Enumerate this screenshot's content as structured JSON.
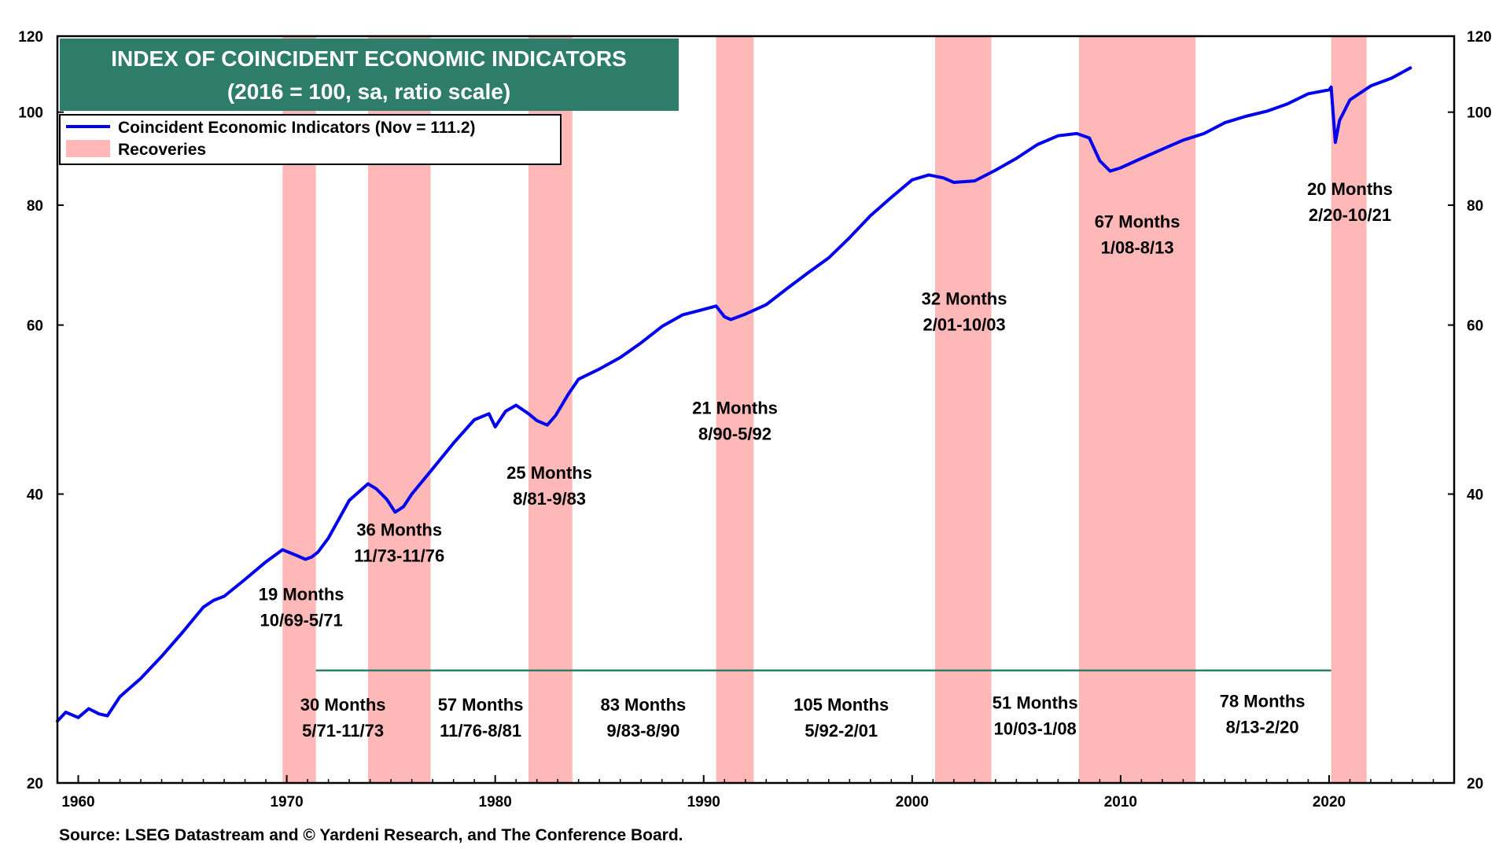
{
  "chart_data": {
    "type": "line",
    "title": "INDEX OF COINCIDENT ECONOMIC INDICATORS",
    "subtitle": "(2016 = 100, sa, ratio scale)",
    "xlabel": "",
    "ylabel": "",
    "y_scale": "log",
    "xlim": [
      1959.0,
      2026.0
    ],
    "ylim": [
      20,
      120
    ],
    "y_ticks": [
      20,
      40,
      60,
      80,
      100,
      120
    ],
    "x_ticks": [
      1960,
      1970,
      1980,
      1990,
      2000,
      2010,
      2020
    ],
    "grid": false,
    "legend_position": "top-left",
    "legend": [
      {
        "label": "Coincident Economic Indicators (Nov = 111.2)",
        "color": "#0000ee",
        "kind": "line"
      },
      {
        "label": "Recoveries",
        "color": "#ffb8b8",
        "kind": "band"
      }
    ],
    "series": [
      {
        "name": "Coincident Economic Indicators",
        "color": "#0000ee",
        "x": [
          1959.0,
          1959.4,
          1960.0,
          1960.5,
          1961.0,
          1961.4,
          1962.0,
          1963.0,
          1964.0,
          1965.0,
          1966.0,
          1966.5,
          1967.0,
          1968.0,
          1969.0,
          1969.8,
          1970.5,
          1970.9,
          1971.2,
          1971.5,
          1972.0,
          1973.0,
          1973.9,
          1974.3,
          1974.8,
          1975.2,
          1975.6,
          1976.0,
          1977.0,
          1978.0,
          1979.0,
          1979.7,
          1980.0,
          1980.5,
          1981.0,
          1981.6,
          1982.0,
          1982.5,
          1982.9,
          1983.5,
          1984.0,
          1985.0,
          1986.0,
          1987.0,
          1988.0,
          1989.0,
          1990.0,
          1990.6,
          1991.0,
          1991.3,
          1992.0,
          1993.0,
          1994.0,
          1995.0,
          1996.0,
          1997.0,
          1998.0,
          1999.0,
          2000.0,
          2000.8,
          2001.5,
          2002.0,
          2003.0,
          2004.0,
          2005.0,
          2006.0,
          2007.0,
          2007.9,
          2008.5,
          2009.0,
          2009.5,
          2010.0,
          2011.0,
          2012.0,
          2013.0,
          2014.0,
          2015.0,
          2016.0,
          2017.0,
          2018.0,
          2019.0,
          2020.0,
          2020.1,
          2020.3,
          2020.5,
          2021.0,
          2022.0,
          2023.0,
          2023.9
        ],
        "values": [
          23.2,
          23.7,
          23.4,
          23.9,
          23.6,
          23.5,
          24.6,
          25.7,
          27.1,
          28.7,
          30.5,
          31.0,
          31.3,
          32.6,
          34.0,
          35.0,
          34.5,
          34.2,
          34.4,
          34.8,
          36.0,
          39.4,
          41.0,
          40.5,
          39.5,
          38.3,
          38.8,
          40.0,
          42.5,
          45.2,
          47.8,
          48.5,
          47.0,
          48.8,
          49.5,
          48.5,
          47.7,
          47.2,
          48.3,
          50.8,
          52.7,
          54.0,
          55.5,
          57.5,
          59.8,
          61.5,
          62.3,
          62.8,
          61.2,
          60.8,
          61.6,
          63.0,
          65.5,
          68.0,
          70.5,
          74.0,
          78.0,
          81.5,
          85.0,
          86.0,
          85.4,
          84.5,
          84.8,
          87.0,
          89.5,
          92.5,
          94.5,
          95.0,
          94.0,
          89.0,
          86.8,
          87.5,
          89.5,
          91.5,
          93.5,
          95.0,
          97.5,
          99.0,
          100.2,
          102.0,
          104.5,
          105.5,
          106.2,
          93.0,
          98.0,
          103.0,
          106.5,
          108.5,
          111.2
        ]
      }
    ],
    "recoveries": [
      {
        "start": 1969.8,
        "end": 1971.4,
        "label_months": "19 Months",
        "label_range": "10/69-5/71",
        "label_year": 1970.7,
        "label_value": 31.0
      },
      {
        "start": 1973.9,
        "end": 1976.9,
        "label_months": "36 Months",
        "label_range": "11/73-11/76",
        "label_year": 1975.4,
        "label_value": 36.2
      },
      {
        "start": 1981.6,
        "end": 1983.7,
        "label_months": "25 Months",
        "label_range": "8/81-9/83",
        "label_year": 1982.6,
        "label_value": 41.5
      },
      {
        "start": 1990.6,
        "end": 1992.4,
        "label_months": "21 Months",
        "label_range": "8/90-5/92",
        "label_year": 1991.5,
        "label_value": 48.5
      },
      {
        "start": 2001.1,
        "end": 2003.8,
        "label_months": "32 Months",
        "label_range": "2/01-10/03",
        "label_year": 2002.5,
        "label_value": 63.0
      },
      {
        "start": 2008.0,
        "end": 2013.6,
        "label_months": "67 Months",
        "label_range": "1/08-8/13",
        "label_year": 2010.8,
        "label_value": 75.8
      },
      {
        "start": 2020.1,
        "end": 2021.8,
        "label_months": "20 Months",
        "label_range": "2/20-10/21",
        "label_year": 2021.0,
        "label_value": 82.0
      }
    ],
    "expansions": [
      {
        "label_months": "30 Months",
        "label_range": "5/71-11/73",
        "label_year": 1972.7,
        "label_value": 23.8
      },
      {
        "label_months": "57 Months",
        "label_range": "11/76-8/81",
        "label_year": 1979.3,
        "label_value": 23.8
      },
      {
        "label_months": "83 Months",
        "label_range": "9/83-8/90",
        "label_year": 1987.1,
        "label_value": 23.8
      },
      {
        "label_months": "105 Months",
        "label_range": "5/92-2/01",
        "label_year": 1996.6,
        "label_value": 23.8
      },
      {
        "label_months": "51 Months",
        "label_range": "10/03-1/08",
        "label_year": 2005.9,
        "label_value": 23.9
      },
      {
        "label_months": "78 Months",
        "label_range": "8/13-2/20",
        "label_year": 2016.8,
        "label_value": 24.0
      }
    ],
    "expansion_line": {
      "start": 1971.4,
      "end": 2020.1,
      "value": 26.2,
      "color": "#2e7d6b"
    }
  },
  "colors": {
    "title_bg": "#2e7d6b",
    "band": "#ffb8b8",
    "line": "#0000ee"
  },
  "source": "Source: LSEG Datastream and © Yardeni Research, and The Conference Board."
}
